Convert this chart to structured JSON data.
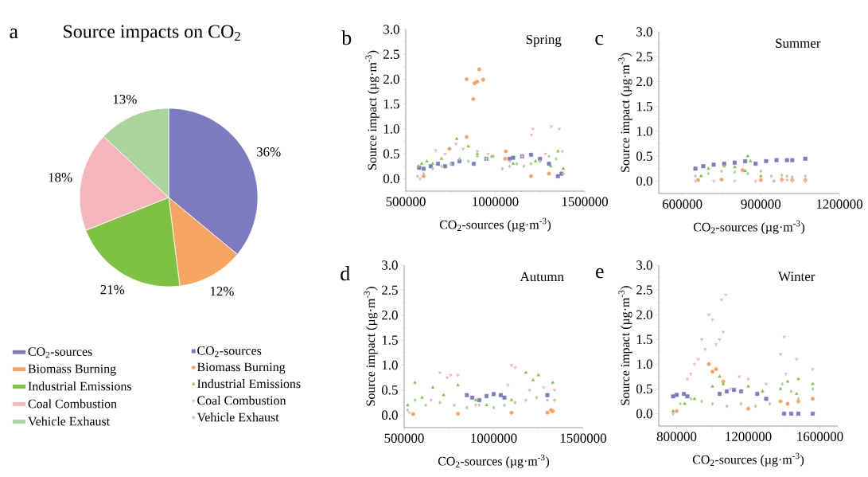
{
  "chart_data": [
    {
      "type": "pie",
      "title": "Source impacts on CO$_{2}$",
      "annotations": [
        "a"
      ],
      "legend": "bottom",
      "categories": [
        "CO$_{2}$-sources",
        "Biomass Burning",
        "Industrial Emissions",
        "Coal Combustion",
        "Vehicle Exhaust"
      ],
      "values": [
        36,
        12,
        21,
        18,
        13
      ],
      "colors": [
        "#7b7bbf",
        "#f5a462",
        "#7dc242",
        "#f4b6bc",
        "#a9d49b"
      ],
      "value_labels": [
        "36%",
        "12%",
        "21%",
        "18%",
        "13%"
      ]
    },
    {
      "type": "scatter",
      "title": "Spring",
      "annotations": [
        "b"
      ],
      "legend": "bottom left",
      "xlabel": "CO$_{2}$-sources (µg·m$^{-3}$)",
      "ylabel": "Source impact (µg·m$^{-3}$)",
      "xlim": [
        500000,
        1500000
      ],
      "xticks": [
        500000,
        1000000,
        1500000
      ],
      "ylim": [
        -0.25,
        3.0
      ],
      "yticks": [
        {
          "value": 0,
          "label": "0.0"
        },
        {
          "value": 0.5,
          "label": "0.5"
        },
        {
          "value": 1,
          "label": "1.0"
        },
        {
          "value": 1.5,
          "label": "1.5"
        },
        {
          "value": 2,
          "label": "2.0"
        },
        {
          "value": 2.5,
          "label": "2.5"
        },
        {
          "value": 3,
          "label": "3.0"
        }
      ],
      "series": [
        {
          "name": "CO$_{2}$-sources",
          "color": "#7b7bbf",
          "marker": "square",
          "x": [
            575000,
            600000,
            640000,
            680000,
            720000,
            760000,
            800000,
            880000,
            950000,
            1080000,
            1100000,
            1150000,
            1200000,
            1250000,
            1300000,
            1350000,
            1370000
          ],
          "values": [
            0.22,
            0.2,
            0.25,
            0.3,
            0.25,
            0.3,
            0.35,
            0.3,
            0.4,
            0.4,
            0.42,
            0.45,
            0.48,
            0.4,
            0.3,
            0.05,
            0.1
          ]
        },
        {
          "name": "Biomass Burning",
          "color": "#f5a462",
          "marker": "circle",
          "x": [
            600000,
            744000,
            840000,
            840000,
            877000,
            884000,
            899000,
            910000,
            932000,
            1055000,
            1059000,
            1200000,
            1300000
          ],
          "values": [
            0.05,
            0.6,
            0.84,
            2.0,
            1.6,
            1.92,
            1.95,
            2.2,
            1.99,
            0.4,
            0.55,
            0.05,
            0.1
          ]
        },
        {
          "name": "Industrial Emissions",
          "color": "#7dc242",
          "marker": "triangle",
          "x": [
            570000,
            589000,
            618000,
            650000,
            700000,
            785000,
            850000,
            900000,
            980000,
            1100000,
            1225000,
            1310000,
            1350000,
            1380000
          ],
          "values": [
            0.25,
            0.3,
            0.35,
            0.3,
            0.4,
            0.8,
            0.65,
            0.5,
            0.45,
            0.3,
            0.35,
            0.25,
            0.55,
            0.2
          ]
        },
        {
          "name": "Coal Combustion",
          "color": "#f4b6bc",
          "marker": "triangle_down",
          "x": [
            580000,
            667000,
            720000,
            781000,
            820000,
            900000,
            960000,
            1080000,
            1150000,
            1202000,
            1210000,
            1280000,
            1313000,
            1358000,
            1375000
          ],
          "values": [
            0.0,
            0.57,
            0.5,
            0.7,
            0.6,
            0.55,
            0.5,
            0.35,
            0.45,
            0.88,
            1.0,
            0.5,
            1.05,
            1.0,
            0.55
          ]
        },
        {
          "name": "Vehicle Exhaust",
          "color": "#a9d49b",
          "marker": "diamond",
          "x": [
            565000,
            600000,
            650000,
            700000,
            750000,
            800000,
            850000,
            900000,
            950000,
            990000,
            1040000,
            1080000,
            1120000,
            1160000,
            1200000,
            1250000,
            1300000,
            1340000,
            1380000
          ],
          "values": [
            0.05,
            0.1,
            0.2,
            0.25,
            0.3,
            0.4,
            0.35,
            0.45,
            0.4,
            0.45,
            0.2,
            0.25,
            0.3,
            0.25,
            0.3,
            0.35,
            0.45,
            0.4,
            0.1
          ]
        }
      ]
    },
    {
      "type": "scatter",
      "title": "Summer",
      "annotations": [
        "c"
      ],
      "xlabel": "CO$_{2}$-sources (µg·m$^{-3}$)",
      "ylabel": "Source impact (µg·m$^{-3}$)",
      "xlim": [
        510000,
        1200000
      ],
      "xticks": [
        600000,
        900000,
        1200000
      ],
      "ylim": [
        -0.25,
        3.0
      ],
      "yticks": [
        {
          "value": 0,
          "label": "0.0"
        },
        {
          "value": 0.5,
          "label": "0.5"
        },
        {
          "value": 1,
          "label": "1.0"
        },
        {
          "value": 1.5,
          "label": "1.5"
        },
        {
          "value": 2,
          "label": "2.0"
        },
        {
          "value": 2.5,
          "label": "2.5"
        },
        {
          "value": 3,
          "label": "3.0"
        }
      ],
      "series": [
        {
          "color": "#7b7bbf",
          "marker": "square",
          "x": [
            650000,
            680000,
            720000,
            760000,
            800000,
            840000,
            880000,
            920000,
            960000,
            1000000,
            1020000,
            1070000
          ],
          "values": [
            0.25,
            0.3,
            0.33,
            0.35,
            0.37,
            0.4,
            0.35,
            0.4,
            0.42,
            0.42,
            0.42,
            0.45
          ]
        },
        {
          "color": "#f5a462",
          "marker": "circle",
          "x": [
            660000,
            750000,
            830000,
            900000,
            980000,
            1020000,
            1070000
          ],
          "values": [
            0.02,
            0.03,
            0.22,
            0.02,
            0.03,
            0.02,
            0.02
          ]
        },
        {
          "color": "#7dc242",
          "marker": "triangle",
          "x": [
            672000,
            700000,
            760000,
            800000,
            840000,
            850000,
            860000,
            900000,
            950000
          ],
          "values": [
            0.1,
            0.25,
            0.3,
            0.28,
            0.2,
            0.5,
            0.4,
            0.1,
            0.0
          ]
        },
        {
          "color": "#f4b6bc",
          "marker": "triangle_down",
          "x": [
            650000,
            720000,
            800000,
            880000,
            950000,
            980000,
            1000000,
            1020000,
            1070000
          ],
          "values": [
            0.0,
            0.0,
            0.0,
            0.0,
            0.0,
            0.0,
            0.02,
            0.0,
            0.0
          ]
        },
        {
          "color": "#a9d49b",
          "marker": "diamond",
          "x": [
            650000,
            700000,
            750000,
            800000,
            850000,
            900000,
            940000,
            980000,
            1000000,
            1020000,
            1070000
          ],
          "values": [
            0.1,
            0.15,
            0.2,
            0.18,
            0.15,
            0.2,
            0.1,
            0.12,
            0.1,
            0.08,
            0.1
          ]
        }
      ]
    },
    {
      "type": "scatter",
      "title": "Autumn",
      "annotations": [
        "d"
      ],
      "xlabel": "CO$_{2}$-sources (µg·m$^{-3}$)",
      "ylabel": "Source impact (µg·m$^{-3}$)",
      "xlim": [
        500000,
        1500000
      ],
      "xticks": [
        500000,
        1000000,
        1500000
      ],
      "ylim": [
        -0.25,
        3.0
      ],
      "yticks": [
        {
          "value": 0,
          "label": "0.0"
        },
        {
          "value": 0.5,
          "label": "0.5"
        },
        {
          "value": 1,
          "label": "1.0"
        },
        {
          "value": 1.5,
          "label": "1.5"
        },
        {
          "value": 2,
          "label": "2.0"
        },
        {
          "value": 2.5,
          "label": "2.5"
        },
        {
          "value": 3,
          "label": "3.0"
        }
      ],
      "series": [
        {
          "color": "#7b7bbf",
          "marker": "square",
          "x": [
            850000,
            880000,
            920000,
            960000,
            1000000,
            1040000,
            1060000,
            1300000
          ],
          "values": [
            0.4,
            0.35,
            0.3,
            0.38,
            0.42,
            0.4,
            0.35,
            0.4
          ]
        },
        {
          "color": "#f5a462",
          "marker": "circle",
          "x": [
            550000,
            800000,
            1100000,
            1300000,
            1320000,
            1330000
          ],
          "values": [
            0.02,
            0.03,
            0.05,
            0.05,
            0.1,
            0.08
          ]
        },
        {
          "color": "#7dc242",
          "marker": "triangle",
          "x": [
            520000,
            560000,
            600000,
            660000,
            720000,
            800000,
            900000,
            960000,
            1100000,
            1180000,
            1220000,
            1250000,
            1330000
          ],
          "values": [
            0.2,
            0.65,
            0.35,
            0.55,
            0.4,
            0.6,
            0.3,
            0.2,
            0.3,
            0.85,
            0.7,
            0.8,
            0.65
          ]
        },
        {
          "color": "#f4b6bc",
          "marker": "triangle_down",
          "x": [
            530000,
            650000,
            700000,
            740000,
            760000,
            800000,
            900000,
            1080000,
            1100000,
            1120000,
            1200000,
            1280000,
            1340000
          ],
          "values": [
            0.05,
            0.3,
            0.85,
            0.75,
            0.8,
            0.8,
            0.2,
            0.6,
            1.0,
            0.95,
            0.5,
            0.55,
            0.5
          ]
        },
        {
          "color": "#a9d49b",
          "marker": "diamond",
          "x": [
            520000,
            560000,
            620000,
            700000,
            780000,
            850000,
            920000,
            1000000,
            1060000,
            1120000,
            1180000,
            1240000,
            1300000,
            1340000
          ],
          "values": [
            0.1,
            0.3,
            0.2,
            0.25,
            0.2,
            0.15,
            0.2,
            0.15,
            0.2,
            0.25,
            0.3,
            0.35,
            0.3,
            0.3
          ]
        }
      ]
    },
    {
      "type": "scatter",
      "title": "Winter",
      "annotations": [
        "e"
      ],
      "xlabel": "CO$_{2}$-sources (µg·m$^{-3}$)",
      "ylabel": "Source impact (µg·m$^{-3}$)",
      "xlim": [
        700000,
        1700000
      ],
      "xticks": [
        800000,
        1200000,
        1600000
      ],
      "ylim": [
        -0.25,
        3.0
      ],
      "yticks": [
        {
          "value": 0,
          "label": "0.0"
        },
        {
          "value": 0.5,
          "label": "0.5"
        },
        {
          "value": 1,
          "label": "1.0"
        },
        {
          "value": 1.5,
          "label": "1.5"
        },
        {
          "value": 2,
          "label": "2.0"
        },
        {
          "value": 2.5,
          "label": "2.5"
        },
        {
          "value": 3,
          "label": "3.0"
        }
      ],
      "series": [
        {
          "color": "#7b7bbf",
          "marker": "square",
          "x": [
            780000,
            800000,
            840000,
            860000,
            1040000,
            1080000,
            1120000,
            1160000,
            1250000,
            1300000,
            1400000,
            1440000,
            1480000,
            1560000
          ],
          "values": [
            0.35,
            0.38,
            0.4,
            0.35,
            0.4,
            0.45,
            0.48,
            0.45,
            0.4,
            0.3,
            0.0,
            0.0,
            0.0,
            0.0
          ]
        },
        {
          "color": "#f5a462",
          "marker": "circle",
          "x": [
            800000,
            980000,
            1000000,
            1020000,
            1060000,
            1200000,
            1380000,
            1420000,
            1480000,
            1560000
          ],
          "values": [
            0.05,
            1.0,
            0.85,
            0.9,
            0.65,
            0.1,
            0.25,
            0.2,
            0.25,
            0.3
          ]
        },
        {
          "color": "#7dc242",
          "marker": "triangle",
          "x": [
            780000,
            845000,
            900000,
            1000000,
            1040000,
            1060000,
            1200000,
            1280000,
            1380000,
            1420000,
            1470000,
            1480000,
            1560000
          ],
          "values": [
            0.05,
            0.2,
            0.3,
            0.55,
            0.75,
            0.6,
            0.55,
            0.45,
            0.5,
            0.65,
            0.4,
            0.7,
            0.6
          ]
        },
        {
          "color": "#f4b6bc",
          "marker": "triangle_down",
          "x": [
            860000,
            880000,
            900000,
            920000,
            940000,
            960000,
            980000,
            1000000,
            1020000,
            1040000,
            1050000,
            1060000,
            1074000,
            1100000,
            1150000,
            1200000,
            1300000,
            1380000,
            1400000,
            1410000,
            1470000,
            1560000
          ],
          "values": [
            0.7,
            0.8,
            1.0,
            1.1,
            1.5,
            1.3,
            2.0,
            1.9,
            1.4,
            1.5,
            2.3,
            1.65,
            2.4,
            0.5,
            0.75,
            0.7,
            0.6,
            1.2,
            1.55,
            0.8,
            1.1,
            0.9
          ]
        },
        {
          "color": "#a9d49b",
          "marker": "diamond",
          "x": [
            780000,
            820000,
            880000,
            940000,
            1000000,
            1080000,
            1160000,
            1240000,
            1320000,
            1390000,
            1440000,
            1480000,
            1560000
          ],
          "values": [
            0.0,
            0.2,
            0.3,
            0.25,
            0.2,
            0.15,
            0.2,
            0.15,
            0.2,
            0.6,
            0.45,
            0.3,
            0.5
          ]
        }
      ]
    }
  ]
}
